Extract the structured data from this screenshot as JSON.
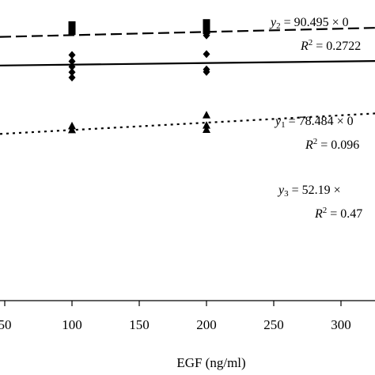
{
  "chart_data": {
    "type": "scatter",
    "title": "",
    "xlabel": "EGF (ng/ml)",
    "ylabel": "",
    "xlim": [
      50,
      355
    ],
    "ylim": [
      0,
      100
    ],
    "x_ticks": [
      "50",
      "100",
      "150",
      "200",
      "250",
      "300"
    ],
    "x_tick_values": [
      50,
      100,
      150,
      200,
      250,
      300
    ],
    "grid": false,
    "series": [
      {
        "marker": "square",
        "trend_line": "dashed",
        "equation_label": "y",
        "equation_subscript": "2",
        "equation_text": " = 90.495 × 0",
        "r2_text": " = 0.2722",
        "points": [
          {
            "x": 100,
            "y": 91.5
          },
          {
            "x": 100,
            "y": 90.3
          },
          {
            "x": 100,
            "y": 89.3
          },
          {
            "x": 200,
            "y": 92.2
          },
          {
            "x": 200,
            "y": 91.2
          },
          {
            "x": 200,
            "y": 90.4
          },
          {
            "x": 200,
            "y": 89.6
          }
        ],
        "trend": [
          {
            "x": 50,
            "y": 87.5
          },
          {
            "x": 355,
            "y": 90.5
          }
        ]
      },
      {
        "marker": "diamond",
        "trend_line": "solid",
        "equation_label": "y",
        "equation_subscript": "1",
        "equation_text": " = 78.484 × 0",
        "r2_text": " = 0.096",
        "points": [
          {
            "x": 100,
            "y": 81.5
          },
          {
            "x": 100,
            "y": 79.4
          },
          {
            "x": 100,
            "y": 77.6
          },
          {
            "x": 100,
            "y": 75.8
          },
          {
            "x": 100,
            "y": 74.0
          },
          {
            "x": 200,
            "y": 88.0
          },
          {
            "x": 200,
            "y": 81.8
          },
          {
            "x": 200,
            "y": 76.7
          },
          {
            "x": 200,
            "y": 75.9
          }
        ],
        "trend": [
          {
            "x": 50,
            "y": 78.0
          },
          {
            "x": 355,
            "y": 79.5
          }
        ]
      },
      {
        "marker": "triangle",
        "trend_line": "dotted",
        "equation_label": "y",
        "equation_subscript": "3",
        "equation_text": " = 52.19 ×",
        "r2_text": " = 0.47",
        "points": [
          {
            "x": 100,
            "y": 57.9
          },
          {
            "x": 100,
            "y": 56.6
          },
          {
            "x": 200,
            "y": 61.5
          },
          {
            "x": 200,
            "y": 58.1
          },
          {
            "x": 200,
            "y": 56.7
          }
        ],
        "trend": [
          {
            "x": 50,
            "y": 55.3
          },
          {
            "x": 355,
            "y": 62.1
          }
        ]
      }
    ]
  }
}
